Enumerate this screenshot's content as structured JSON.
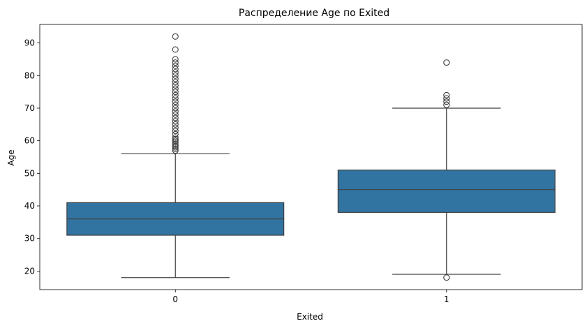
{
  "chart_data": {
    "type": "box",
    "title": "Распределение Age по Exited",
    "xlabel": "Exited",
    "ylabel": "Age",
    "ylim": [
      14.3,
      95.7
    ],
    "yticks": [
      20,
      30,
      40,
      50,
      60,
      70,
      80,
      90
    ],
    "categories": [
      "0",
      "1"
    ],
    "box_color": "#3274a1",
    "line_color": "#3f3f3f",
    "grid": false,
    "boxes": [
      {
        "category": "0",
        "whisker_low": 18,
        "q1": 31,
        "median": 36,
        "q3": 41,
        "whisker_high": 56,
        "outliers": [
          57,
          57.5,
          58,
          58.5,
          59,
          59.5,
          60,
          60.5,
          61,
          62,
          63,
          64,
          65,
          66,
          67,
          68,
          69,
          70,
          71,
          72,
          73,
          74,
          75,
          76,
          77,
          78,
          79,
          80,
          81,
          82,
          83,
          84,
          85,
          88,
          92
        ]
      },
      {
        "category": "1",
        "whisker_low": 19,
        "q1": 38,
        "median": 45,
        "q3": 51,
        "whisker_high": 70,
        "outliers": [
          18,
          71,
          72,
          73,
          74,
          84
        ]
      }
    ]
  }
}
